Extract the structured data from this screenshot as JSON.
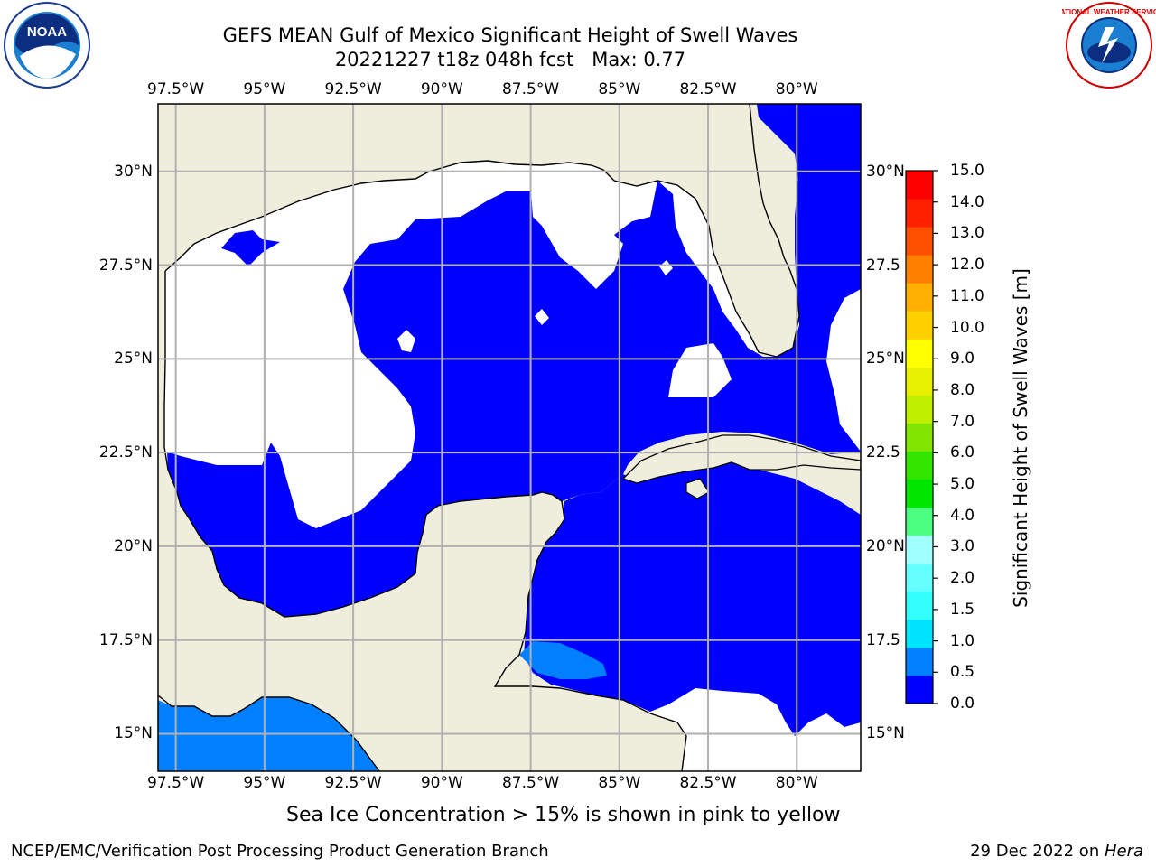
{
  "title": {
    "line1": "GEFS MEAN Gulf of Mexico Significant Height of Swell Waves",
    "line2": "20221227 t18z 048h fcst   Max: 0.77"
  },
  "logos": {
    "left": {
      "name": "noaa-logo",
      "text": "NOAA"
    },
    "right": {
      "name": "nws-logo",
      "text": "NATIONAL WEATHER SERVICE"
    }
  },
  "map": {
    "lon_labels": [
      "97.5°W",
      "95°W",
      "92.5°W",
      "90°W",
      "87.5°W",
      "85°W",
      "82.5°W",
      "80°W"
    ],
    "lon_values": [
      -97.5,
      -95,
      -92.5,
      -90,
      -87.5,
      -85,
      -82.5,
      -80
    ],
    "lat_labels_left": [
      "30°N",
      "27.5°N",
      "25°N",
      "22.5°N",
      "20°N",
      "17.5°N",
      "15°N"
    ],
    "lat_labels_right": [
      "30°N",
      "27.5",
      "25°N",
      "22.5",
      "20°N",
      "17.5",
      "15°N"
    ],
    "lat_values": [
      30,
      27.5,
      25,
      22.5,
      20,
      17.5,
      15
    ],
    "extent": {
      "lon_min": -98,
      "lon_max": -78.2,
      "lat_min": 14,
      "lat_max": 31.8
    },
    "colors": {
      "land": "#efeedd",
      "water_low": "#0000ff",
      "water_mid": "#0080ff",
      "nodata": "#ffffff",
      "grid": "#b0b0b0"
    }
  },
  "colorbar": {
    "label": "Significant Height of Swell Waves [m]",
    "ticks": [
      "0.0",
      "0.5",
      "1.0",
      "1.5",
      "2.0",
      "3.0",
      "4.0",
      "5.0",
      "6.0",
      "7.0",
      "8.0",
      "9.0",
      "10.0",
      "11.0",
      "12.0",
      "13.0",
      "14.0",
      "15.0"
    ],
    "colors": [
      "#0000ff",
      "#0080ff",
      "#00e5ff",
      "#33ffff",
      "#66ffff",
      "#a0ffff",
      "#4dff80",
      "#00e600",
      "#33e600",
      "#80e600",
      "#c0f000",
      "#e6f000",
      "#ffff00",
      "#ffd000",
      "#ffb000",
      "#ff8000",
      "#ff5000",
      "#ff2000",
      "#ff0000"
    ]
  },
  "note": "Sea Ice Concentration > 15% is shown in pink to yellow",
  "footer": {
    "left": "NCEP/EMC/Verification Post Processing Product Generation Branch",
    "date": "29 Dec 2022 on ",
    "host": "Hera"
  }
}
